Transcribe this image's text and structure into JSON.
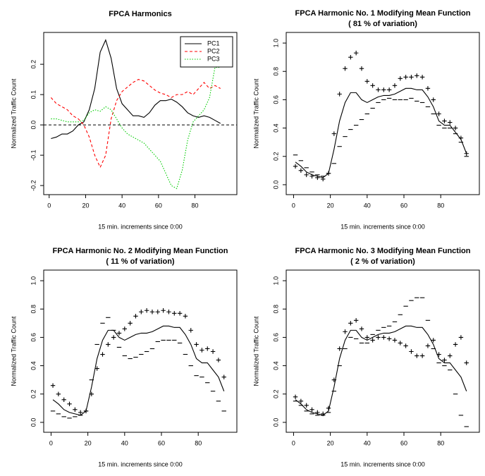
{
  "chart_data": [
    {
      "type": "line",
      "title": "FPCA Harmonics",
      "xlabel": "15 min. increments since 0:00",
      "ylabel": "Normalized Traffic Count",
      "x": [
        1,
        4,
        7,
        10,
        13,
        16,
        19,
        22,
        25,
        28,
        31,
        34,
        37,
        40,
        43,
        46,
        49,
        52,
        55,
        58,
        61,
        64,
        67,
        70,
        73,
        76,
        79,
        82,
        85,
        88,
        91,
        94
      ],
      "series": [
        {
          "name": "PC1",
          "color": "#000000",
          "style": "solid",
          "values": [
            -0.045,
            -0.04,
            -0.03,
            -0.03,
            -0.02,
            0.0,
            0.01,
            0.05,
            0.12,
            0.24,
            0.28,
            0.22,
            0.12,
            0.07,
            0.05,
            0.03,
            0.03,
            0.025,
            0.04,
            0.065,
            0.08,
            0.08,
            0.085,
            0.075,
            0.06,
            0.04,
            0.03,
            0.025,
            0.03,
            0.025,
            0.015,
            0.005
          ]
        },
        {
          "name": "PC2",
          "color": "#ff0000",
          "style": "dashed",
          "values": [
            0.09,
            0.07,
            0.06,
            0.05,
            0.03,
            0.02,
            0.0,
            -0.04,
            -0.1,
            -0.14,
            -0.1,
            0.02,
            0.08,
            0.11,
            0.125,
            0.14,
            0.15,
            0.145,
            0.13,
            0.115,
            0.105,
            0.1,
            0.09,
            0.1,
            0.1,
            0.11,
            0.1,
            0.12,
            0.14,
            0.12,
            0.13,
            0.12
          ]
        },
        {
          "name": "PC3",
          "color": "#00cd00",
          "style": "dotted",
          "values": [
            0.02,
            0.02,
            0.015,
            0.01,
            0.01,
            0.01,
            0.015,
            0.04,
            0.05,
            0.045,
            0.06,
            0.05,
            0.02,
            -0.01,
            -0.03,
            -0.04,
            -0.05,
            -0.06,
            -0.08,
            -0.1,
            -0.12,
            -0.16,
            -0.2,
            -0.21,
            -0.15,
            -0.05,
            0.01,
            0.03,
            0.05,
            0.09,
            0.19,
            0.19
          ]
        }
      ],
      "hline": 0,
      "legend": "topright",
      "xlim": [
        -3,
        103
      ],
      "ylim": [
        -0.23,
        0.305
      ],
      "xticks": [
        0,
        20,
        40,
        60,
        80
      ],
      "yticks": [
        -0.2,
        -0.1,
        {
          "value": 0,
          "label": "0.0"
        },
        0.1,
        0.2
      ]
    },
    {
      "type": "line",
      "title": "FPCA Harmonic No. 1 Modifying Mean Function",
      "subtitle": "( 81 % of variation)",
      "xlabel": "15 min. increments since 0:00",
      "ylabel": "Normalized Traffic Count",
      "x": [
        1,
        4,
        7,
        10,
        13,
        16,
        19,
        22,
        25,
        28,
        31,
        34,
        37,
        40,
        43,
        46,
        49,
        52,
        55,
        58,
        61,
        64,
        67,
        70,
        73,
        76,
        79,
        82,
        85,
        88,
        91,
        94
      ],
      "series": [
        {
          "color": "#000000",
          "style": "solid",
          "values": [
            0.16,
            0.13,
            0.09,
            0.07,
            0.06,
            0.05,
            0.08,
            0.25,
            0.45,
            0.58,
            0.65,
            0.65,
            0.6,
            0.58,
            0.6,
            0.62,
            0.63,
            0.63,
            0.64,
            0.66,
            0.68,
            0.68,
            0.67,
            0.67,
            0.62,
            0.55,
            0.45,
            0.42,
            0.42,
            0.37,
            0.32,
            0.22
          ]
        },
        {
          "color": "#000000",
          "marker": "plus",
          "values": [
            0.13,
            0.1,
            0.07,
            0.06,
            0.05,
            0.04,
            0.08,
            0.36,
            0.64,
            0.82,
            0.9,
            0.93,
            0.82,
            0.73,
            0.7,
            0.67,
            0.67,
            0.67,
            0.7,
            0.75,
            0.76,
            0.76,
            0.77,
            0.76,
            0.68,
            0.6,
            0.5,
            0.45,
            0.44,
            0.4,
            0.33,
            0.22
          ]
        },
        {
          "color": "#000000",
          "marker": "minus",
          "values": [
            0.21,
            0.17,
            0.12,
            0.09,
            0.07,
            0.06,
            0.08,
            0.15,
            0.27,
            0.34,
            0.39,
            0.42,
            0.46,
            0.5,
            0.54,
            0.58,
            0.6,
            0.61,
            0.6,
            0.6,
            0.6,
            0.61,
            0.59,
            0.58,
            0.55,
            0.5,
            0.42,
            0.4,
            0.4,
            0.36,
            0.3,
            0.2
          ]
        }
      ],
      "xlim": [
        -4,
        101
      ],
      "ylim": [
        -0.07,
        1.075
      ],
      "xticks": [
        0,
        20,
        40,
        60,
        80
      ],
      "yticks": [
        {
          "value": 0,
          "label": "0.0"
        },
        0.2,
        0.4,
        0.6,
        0.8,
        {
          "value": 1,
          "label": "1.0"
        }
      ]
    },
    {
      "type": "line",
      "title": "FPCA Harmonic No. 2 Modifying Mean Function",
      "subtitle": "( 11 % of variation)",
      "xlabel": "15 min. increments since 0:00",
      "ylabel": "Normalized Traffic Count",
      "x": [
        1,
        4,
        7,
        10,
        13,
        16,
        19,
        22,
        25,
        28,
        31,
        34,
        37,
        40,
        43,
        46,
        49,
        52,
        55,
        58,
        61,
        64,
        67,
        70,
        73,
        76,
        79,
        82,
        85,
        88,
        91,
        94
      ],
      "series": [
        {
          "color": "#000000",
          "style": "solid",
          "values": [
            0.16,
            0.13,
            0.09,
            0.07,
            0.06,
            0.05,
            0.08,
            0.25,
            0.45,
            0.58,
            0.65,
            0.65,
            0.6,
            0.58,
            0.6,
            0.62,
            0.63,
            0.63,
            0.64,
            0.66,
            0.68,
            0.68,
            0.67,
            0.67,
            0.62,
            0.55,
            0.45,
            0.42,
            0.42,
            0.37,
            0.32,
            0.22
          ]
        },
        {
          "color": "#000000",
          "marker": "plus",
          "values": [
            0.26,
            0.2,
            0.16,
            0.13,
            0.09,
            0.07,
            0.08,
            0.2,
            0.38,
            0.48,
            0.55,
            0.6,
            0.63,
            0.66,
            0.7,
            0.75,
            0.78,
            0.79,
            0.78,
            0.78,
            0.79,
            0.78,
            0.77,
            0.77,
            0.75,
            0.65,
            0.55,
            0.51,
            0.52,
            0.5,
            0.44,
            0.32
          ]
        },
        {
          "color": "#000000",
          "marker": "minus",
          "values": [
            0.08,
            0.06,
            0.04,
            0.03,
            0.04,
            0.05,
            0.08,
            0.3,
            0.55,
            0.7,
            0.74,
            0.65,
            0.53,
            0.47,
            0.45,
            0.46,
            0.48,
            0.5,
            0.52,
            0.57,
            0.58,
            0.58,
            0.58,
            0.56,
            0.48,
            0.4,
            0.33,
            0.32,
            0.28,
            0.22,
            0.15,
            0.08
          ]
        }
      ],
      "xlim": [
        -4,
        101
      ],
      "ylim": [
        -0.07,
        1.075
      ],
      "xticks": [
        0,
        20,
        40,
        60,
        80
      ],
      "yticks": [
        {
          "value": 0,
          "label": "0.0"
        },
        0.2,
        0.4,
        0.6,
        0.8,
        {
          "value": 1,
          "label": "1.0"
        }
      ]
    },
    {
      "type": "line",
      "title": "FPCA Harmonic No. 3 Modifying Mean Function",
      "subtitle": "( 2 % of variation)",
      "xlabel": "15 min. increments since 0:00",
      "ylabel": "Normalized Traffic Count",
      "x": [
        1,
        4,
        7,
        10,
        13,
        16,
        19,
        22,
        25,
        28,
        31,
        34,
        37,
        40,
        43,
        46,
        49,
        52,
        55,
        58,
        61,
        64,
        67,
        70,
        73,
        76,
        79,
        82,
        85,
        88,
        91,
        94
      ],
      "series": [
        {
          "color": "#000000",
          "style": "solid",
          "values": [
            0.16,
            0.13,
            0.09,
            0.07,
            0.06,
            0.05,
            0.08,
            0.25,
            0.45,
            0.58,
            0.65,
            0.65,
            0.6,
            0.58,
            0.6,
            0.62,
            0.63,
            0.63,
            0.64,
            0.66,
            0.68,
            0.68,
            0.67,
            0.67,
            0.62,
            0.55,
            0.45,
            0.42,
            0.42,
            0.37,
            0.32,
            0.22
          ]
        },
        {
          "color": "#000000",
          "marker": "plus",
          "values": [
            0.18,
            0.15,
            0.12,
            0.09,
            0.07,
            0.06,
            0.1,
            0.3,
            0.52,
            0.64,
            0.7,
            0.72,
            0.66,
            0.6,
            0.58,
            0.6,
            0.6,
            0.59,
            0.58,
            0.56,
            0.54,
            0.5,
            0.47,
            0.47,
            0.54,
            0.58,
            0.48,
            0.44,
            0.47,
            0.55,
            0.6,
            0.42
          ]
        },
        {
          "color": "#000000",
          "marker": "minus",
          "values": [
            0.15,
            0.12,
            0.08,
            0.06,
            0.05,
            0.05,
            0.07,
            0.22,
            0.4,
            0.52,
            0.6,
            0.59,
            0.56,
            0.56,
            0.62,
            0.65,
            0.67,
            0.68,
            0.71,
            0.76,
            0.82,
            0.86,
            0.88,
            0.88,
            0.72,
            0.52,
            0.42,
            0.4,
            0.37,
            0.2,
            0.05,
            -0.03
          ]
        }
      ],
      "xlim": [
        -4,
        101
      ],
      "ylim": [
        -0.07,
        1.075
      ],
      "xticks": [
        0,
        20,
        40,
        60,
        80
      ],
      "yticks": [
        {
          "value": 0,
          "label": "0.0"
        },
        0.2,
        0.4,
        0.6,
        0.8,
        {
          "value": 1,
          "label": "1.0"
        }
      ]
    }
  ]
}
